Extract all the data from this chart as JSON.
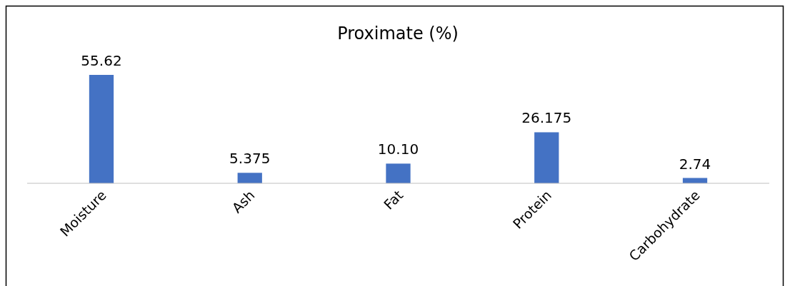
{
  "chart_data": {
    "type": "bar",
    "title": "Proximate (%)",
    "categories": [
      "Moisture",
      "Ash",
      "Fat",
      "Protein",
      "Carbohydrate"
    ],
    "values": [
      55.62,
      5.375,
      10.1,
      26.175,
      2.74
    ],
    "value_labels": [
      "55.62",
      "5.375",
      "10.10",
      "26.175",
      "2.74"
    ],
    "color": "#4472c4"
  }
}
